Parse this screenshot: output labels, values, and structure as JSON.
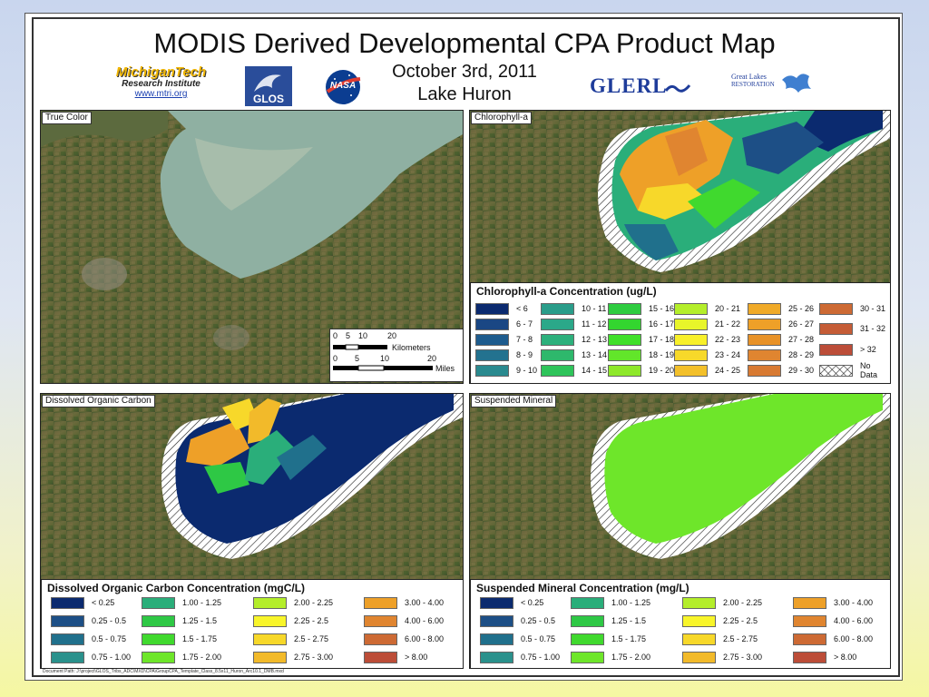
{
  "title": "MODIS Derived Developmental CPA Product Map",
  "date": "October 3rd, 2011",
  "lake": "Lake Huron",
  "logos": {
    "michigantech_line1": "MichiganTech",
    "michigantech_line2": "Research Institute",
    "michigantech_url": "www.mtri.org",
    "glos": "GLOS",
    "nasa": "NASA",
    "glerl": "GLERL",
    "glri_line1": "Great Lakes",
    "glri_line2": "RESTORATION"
  },
  "panels": {
    "true_color": "True Color",
    "chlorophyll": "Chlorophyll-a",
    "doc": "Dissolved Organic Carbon",
    "suspended": "Suspended Mineral"
  },
  "scale": {
    "km_ticks": [
      "0",
      "5",
      "10",
      "20"
    ],
    "km_label": "Kilometers",
    "mi_ticks": [
      "0",
      "5",
      "10",
      "20"
    ],
    "mi_label": "Miles"
  },
  "legend_chl": {
    "title": "Chlorophyll-a Concentration (ug/L)",
    "items": [
      {
        "label": "< 6",
        "color": "#0b2a6f"
      },
      {
        "label": "6 - 7",
        "color": "#1a4784"
      },
      {
        "label": "7 - 8",
        "color": "#1e5c8e"
      },
      {
        "label": "8 - 9",
        "color": "#23728f"
      },
      {
        "label": "9 - 10",
        "color": "#2a8a8f"
      },
      {
        "label": "10 - 11",
        "color": "#2a9d8a"
      },
      {
        "label": "11 - 12",
        "color": "#2ba889"
      },
      {
        "label": "12 - 13",
        "color": "#2db07c"
      },
      {
        "label": "13 - 14",
        "color": "#2eb86c"
      },
      {
        "label": "14 - 15",
        "color": "#2ec45a"
      },
      {
        "label": "15 - 16",
        "color": "#2ecc40"
      },
      {
        "label": "16 - 17",
        "color": "#33d62f"
      },
      {
        "label": "17 - 18",
        "color": "#40e02a"
      },
      {
        "label": "18 - 19",
        "color": "#62e62a"
      },
      {
        "label": "19 - 20",
        "color": "#8ee82a"
      },
      {
        "label": "20 - 21",
        "color": "#b4ee2a"
      },
      {
        "label": "21 - 22",
        "color": "#e8f52a"
      },
      {
        "label": "22 - 23",
        "color": "#f8f02a"
      },
      {
        "label": "23 - 24",
        "color": "#f7d92a"
      },
      {
        "label": "24 - 25",
        "color": "#f3c02a"
      },
      {
        "label": "25 - 26",
        "color": "#f0aa28"
      },
      {
        "label": "26 - 27",
        "color": "#eea028"
      },
      {
        "label": "27 - 28",
        "color": "#e89228"
      },
      {
        "label": "28 - 29",
        "color": "#e08530"
      },
      {
        "label": "29 - 30",
        "color": "#d87a32"
      },
      {
        "label": "30 - 31",
        "color": "#cd6a34"
      },
      {
        "label": "31 - 32",
        "color": "#c55c36"
      },
      {
        "label": "> 32",
        "color": "#bc4d38"
      },
      {
        "label": "No Data",
        "color": "hatch"
      }
    ]
  },
  "legend_doc": {
    "title": "Dissolved Organic Carbon Concentration (mgC/L)",
    "items": [
      {
        "label": "< 0.25",
        "color": "#0b2a6f"
      },
      {
        "label": "0.25 - 0.5",
        "color": "#1d4f86"
      },
      {
        "label": "0.5 - 0.75",
        "color": "#20708c"
      },
      {
        "label": "0.75 - 1.00",
        "color": "#2a918c"
      },
      {
        "label": "1.00 - 1.25",
        "color": "#2aae7a"
      },
      {
        "label": "1.25 - 1.5",
        "color": "#2ec845"
      },
      {
        "label": "1.5 - 1.75",
        "color": "#40d92e"
      },
      {
        "label": "1.75 - 2.00",
        "color": "#6ee62a"
      },
      {
        "label": "2.00 - 2.25",
        "color": "#b4ee2a"
      },
      {
        "label": "2.25 - 2.5",
        "color": "#f8f52a"
      },
      {
        "label": "2.5 - 2.75",
        "color": "#f7d82a"
      },
      {
        "label": "2.75 - 3.00",
        "color": "#f2ba2a"
      },
      {
        "label": "3.00 - 4.00",
        "color": "#eea028"
      },
      {
        "label": "4.00 - 6.00",
        "color": "#e08530"
      },
      {
        "label": "6.00 - 8.00",
        "color": "#cd6a34"
      },
      {
        "label": "> 8.00",
        "color": "#bc4d38"
      }
    ]
  },
  "legend_sm": {
    "title": "Suspended Mineral Concentration (mg/L)",
    "items": [
      {
        "label": "< 0.25",
        "color": "#0b2a6f"
      },
      {
        "label": "0.25 - 0.5",
        "color": "#1d4f86"
      },
      {
        "label": "0.5 - 0.75",
        "color": "#20708c"
      },
      {
        "label": "0.75 - 1.00",
        "color": "#2a918c"
      },
      {
        "label": "1.00 - 1.25",
        "color": "#2aae7a"
      },
      {
        "label": "1.25 - 1.5",
        "color": "#2ec845"
      },
      {
        "label": "1.5 - 1.75",
        "color": "#40d92e"
      },
      {
        "label": "1.75 - 2.00",
        "color": "#6ee62a"
      },
      {
        "label": "2.00 - 2.25",
        "color": "#b4ee2a"
      },
      {
        "label": "2.25 - 2.5",
        "color": "#f8f52a"
      },
      {
        "label": "2.5 - 2.75",
        "color": "#f7d82a"
      },
      {
        "label": "2.75 - 3.00",
        "color": "#f2ba2a"
      },
      {
        "label": "3.00 - 4.00",
        "color": "#eea028"
      },
      {
        "label": "4.00 - 6.00",
        "color": "#e08530"
      },
      {
        "label": "6.00 - 8.00",
        "color": "#cd6a34"
      },
      {
        "label": "> 8.00",
        "color": "#bc4d38"
      }
    ]
  },
  "doc_path": "Document Path: J:\\project\\GLOS_Tribs_ADC\\MXD\\CPA\\GroupCPA_Template_Class_8.5x11_Huron_Arc10.1_DMB.mxd"
}
